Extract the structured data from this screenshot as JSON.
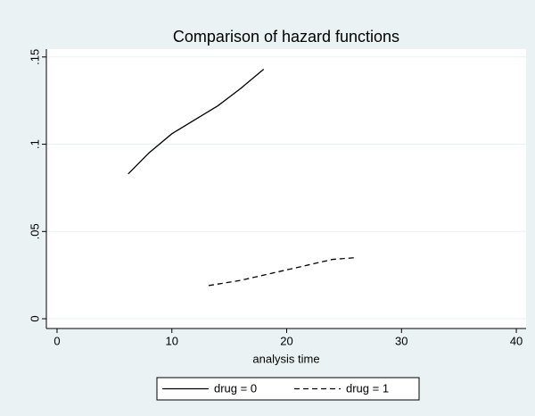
{
  "chart_data": {
    "type": "line",
    "title": "Comparison of hazard functions",
    "xlabel": "analysis time",
    "series": [
      {
        "name": "drug = 0",
        "color": "#000000",
        "dashed": false,
        "x": [
          6.2,
          8,
          10,
          12,
          14,
          16,
          18
        ],
        "values": [
          0.083,
          0.095,
          0.106,
          0.114,
          0.122,
          0.132,
          0.143
        ]
      },
      {
        "name": "drug = 1",
        "color": "#000000",
        "dashed": true,
        "x": [
          13.2,
          16,
          18,
          20,
          22,
          24,
          26
        ],
        "values": [
          0.019,
          0.022,
          0.025,
          0.028,
          0.031,
          0.034,
          0.035
        ]
      }
    ],
    "xlim": [
      -0.93,
      40.85
    ],
    "xticks": [
      0,
      10,
      20,
      30,
      40
    ],
    "ylim": [
      -0.0056,
      0.1545
    ],
    "yticks": [
      0,
      {
        "value": 0.05,
        "label": ".05"
      },
      {
        "value": 0.1,
        "label": ".1"
      },
      {
        "value": 0.15,
        "label": ".15"
      }
    ],
    "grid": true,
    "legend": "bottom"
  }
}
